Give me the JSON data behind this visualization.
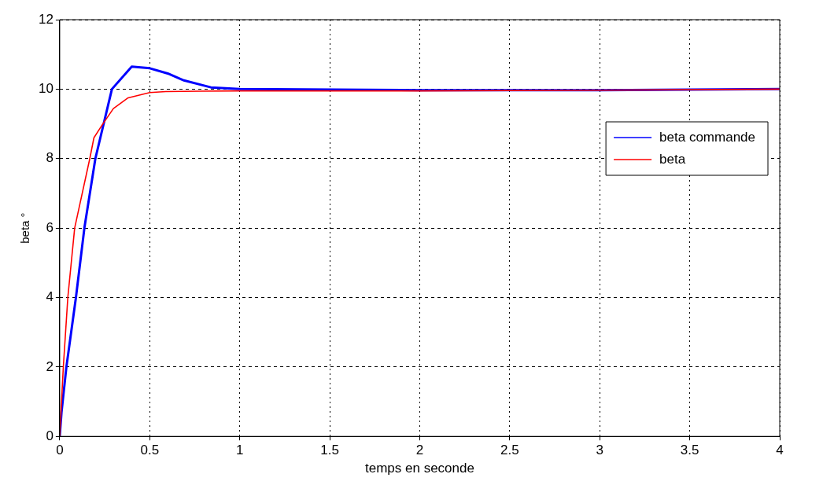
{
  "chart_data": {
    "type": "line",
    "xlabel": "temps en seconde",
    "ylabel": "beta °",
    "xlim": [
      0,
      4
    ],
    "xticks": [
      0,
      0.5,
      1,
      1.5,
      2,
      2.5,
      3,
      3.5,
      4
    ],
    "ylim": [
      0,
      12
    ],
    "yticks": [
      0,
      2,
      4,
      6,
      8,
      10,
      12
    ],
    "grid": true,
    "legend": "top right",
    "line_style": "solid",
    "marker": "none",
    "series": [
      {
        "name": "beta commande",
        "color": "#0000ff",
        "x": [
          0,
          0.01,
          0.037,
          0.09,
          0.137,
          0.198,
          0.29,
          0.4,
          0.5,
          0.6,
          0.69,
          0.84,
          1.0,
          2,
          3,
          4
        ],
        "values": [
          0,
          0.7,
          2,
          4,
          6,
          8,
          10,
          10.65,
          10.6,
          10.45,
          10.25,
          10.05,
          10,
          9.97,
          9.97,
          10
        ]
      },
      {
        "name": "beta",
        "color": "#ff0000",
        "x": [
          0,
          0.02,
          0.045,
          0.083,
          0.167,
          0.19,
          0.236,
          0.298,
          0.38,
          0.5,
          0.59,
          1,
          2,
          3,
          4
        ],
        "values": [
          0,
          2,
          4,
          6,
          8,
          8.6,
          8.97,
          9.44,
          9.75,
          9.9,
          9.93,
          9.95,
          9.95,
          9.97,
          10
        ]
      }
    ]
  }
}
